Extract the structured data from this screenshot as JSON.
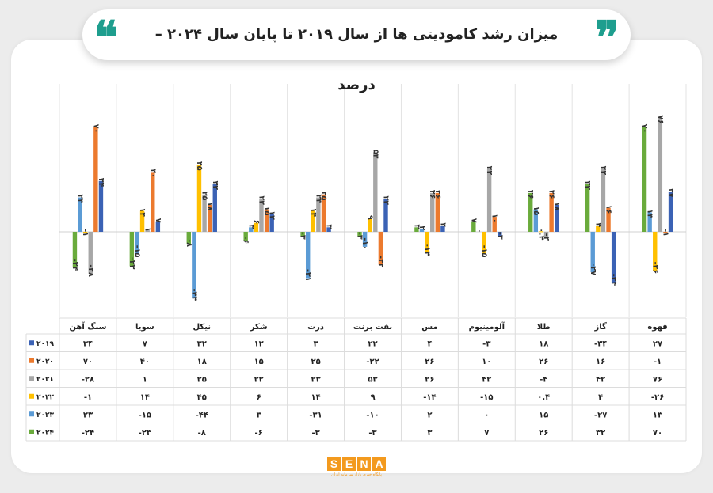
{
  "title": "میزان رشد کامودیتی ها از سال ۲۰۱۹ تا پایان سال ۲۰۲۴ – درصد",
  "logo": {
    "letters": [
      "S",
      "E",
      "N",
      "A"
    ],
    "tagline": "پایگاه خبری بازار سرمایه ایران"
  },
  "colors": {
    "2019": "#3b62b5",
    "2020": "#ec7a2e",
    "2021": "#a7a7a7",
    "2022": "#ffc000",
    "2023": "#5b9bd5",
    "2024": "#6aab3c"
  },
  "chart_data": {
    "type": "bar",
    "categories": [
      "قهوه",
      "گاز",
      "طلا",
      "آلومینیوم",
      "مس",
      "نفت برنت",
      "ذرت",
      "شکر",
      "نیکل",
      "سویا",
      "سنگ آهن"
    ],
    "series": [
      {
        "name": "۲۰۱۹",
        "color_key": "2019",
        "values": [
          27,
          -34,
          18,
          -3,
          4,
          22,
          3,
          12,
          32,
          7,
          34
        ],
        "labels": [
          "۲۷",
          "-۳۴",
          "۱۸",
          "-۳",
          "۴",
          "۲۲",
          "۳",
          "۱۲",
          "۳۲",
          "۷",
          "۳۴"
        ]
      },
      {
        "name": "۲۰۲۰",
        "color_key": "2020",
        "values": [
          -1,
          16,
          26,
          10,
          26,
          -22,
          25,
          15,
          18,
          40,
          70
        ],
        "labels": [
          "-۱",
          "۱۶",
          "۲۶",
          "۱۰",
          "۲۶",
          "-۲۲",
          "۲۵",
          "۱۵",
          "۱۸",
          "۴۰",
          "۷۰"
        ]
      },
      {
        "name": "۲۰۲۱",
        "color_key": "2021",
        "values": [
          76,
          42,
          -4,
          42,
          26,
          53,
          23,
          22,
          25,
          1,
          -28
        ],
        "labels": [
          "۷۶",
          "۴۲",
          "-۴",
          "۴۲",
          "۲۶",
          "۵۳",
          "۲۳",
          "۲۲",
          "۲۵",
          "۱",
          "-۲۸"
        ]
      },
      {
        "name": "۲۰۲۲",
        "color_key": "2022",
        "values": [
          -26,
          4,
          0.4,
          -15,
          -14,
          9,
          14,
          6,
          45,
          14,
          -1
        ],
        "labels": [
          "-۲۶",
          "۴",
          "۰.۴",
          "-۱۵",
          "-۱۴",
          "۹",
          "۱۴",
          "۶",
          "۴۵",
          "۱۴",
          "-۱"
        ]
      },
      {
        "name": "۲۰۲۳",
        "color_key": "2023",
        "values": [
          13,
          -27,
          15,
          0,
          2,
          -10,
          -31,
          3,
          -44,
          -15,
          23
        ],
        "labels": [
          "۱۳",
          "-۲۷",
          "۱۵",
          "۰",
          "۲",
          "-۱۰",
          "-۳۱",
          "۳",
          "-۴۴",
          "-۱۵",
          "۲۳"
        ]
      },
      {
        "name": "۲۰۲۴",
        "color_key": "2024",
        "values": [
          70,
          32,
          26,
          7,
          3,
          -3,
          -3,
          -6,
          -8,
          -23,
          -24
        ],
        "labels": [
          "۷۰",
          "۳۲",
          "۲۶",
          "۷",
          "۳",
          "-۳",
          "-۳",
          "-۶",
          "-۸",
          "-۲۳",
          "-۲۴"
        ]
      }
    ],
    "ylim": [
      -62,
      82
    ],
    "legend": "table-left",
    "grid": false
  }
}
